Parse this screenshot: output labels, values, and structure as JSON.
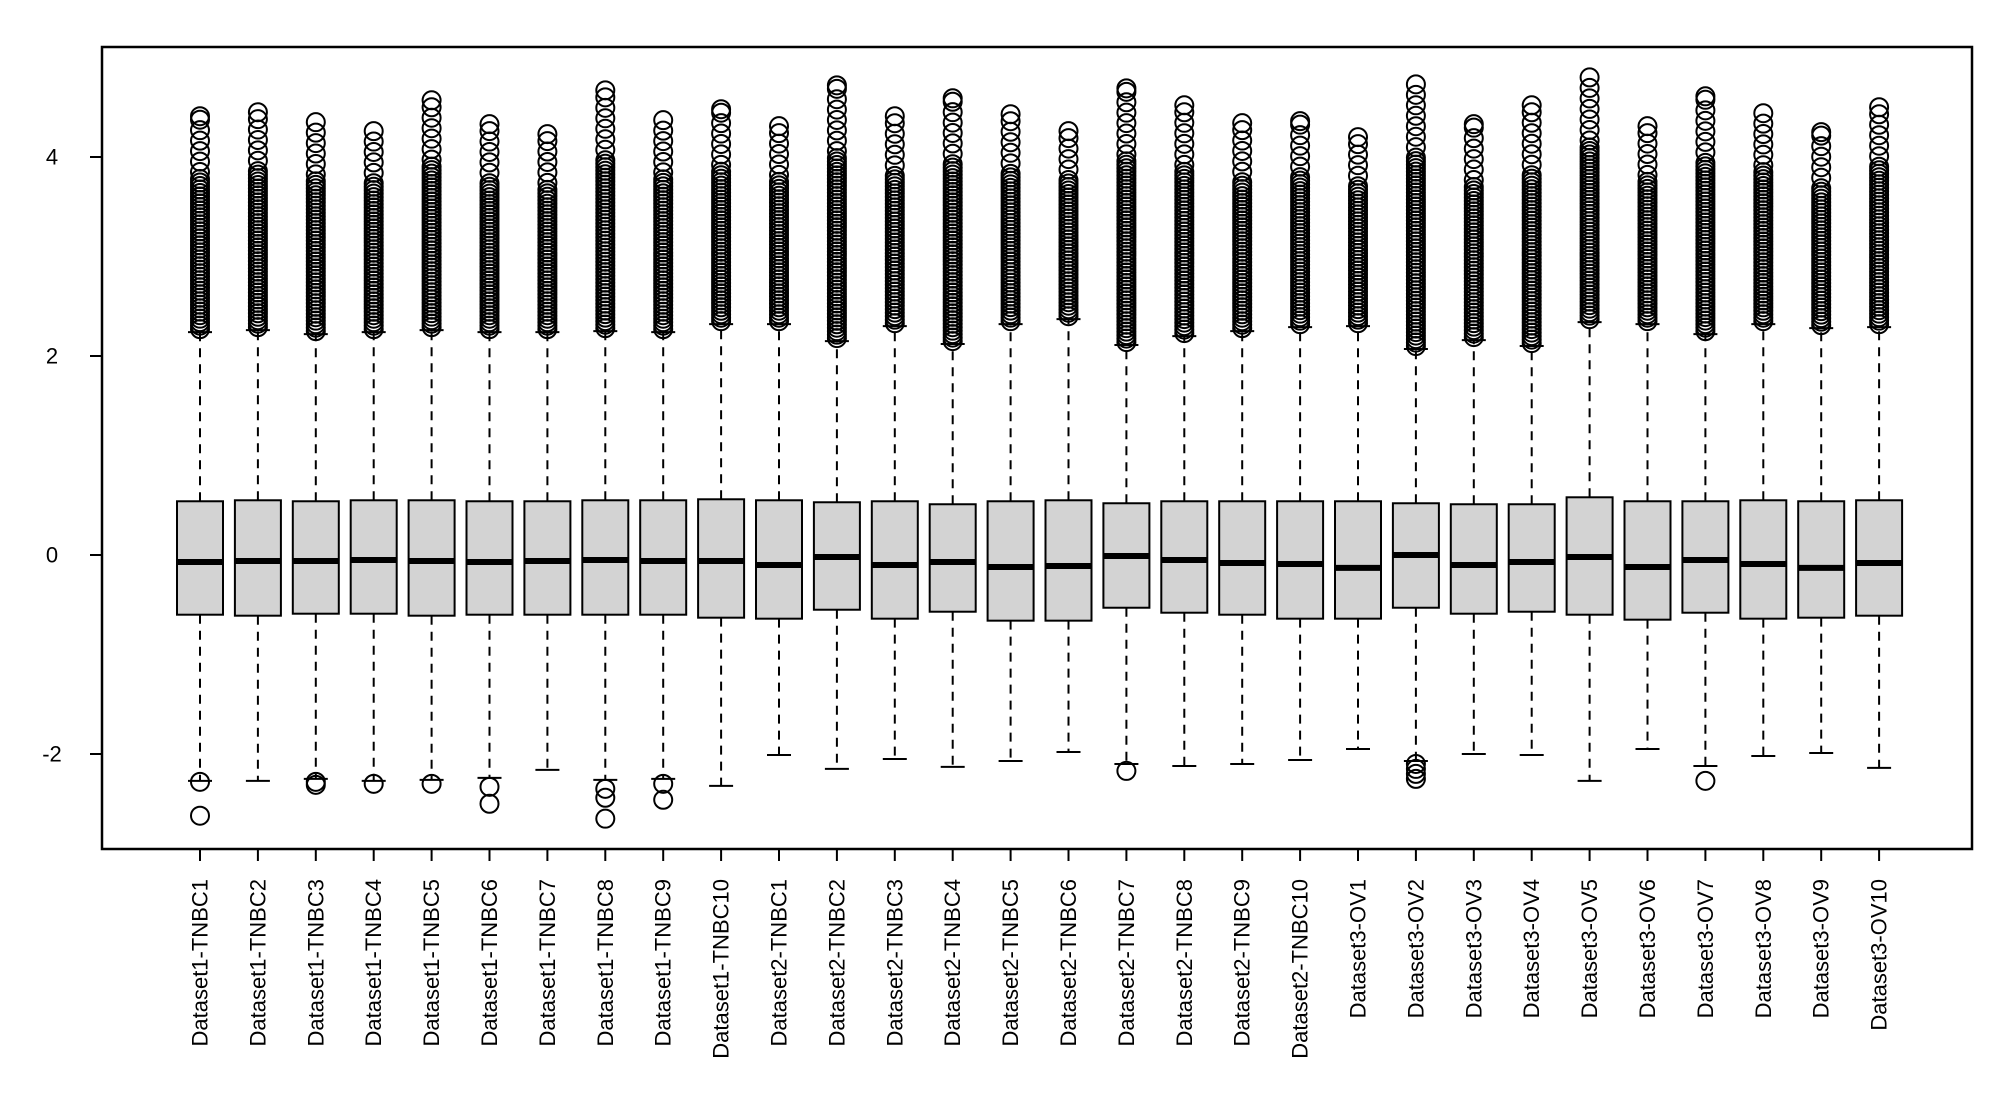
{
  "chart_data": {
    "type": "box",
    "title": "",
    "xlabel": "",
    "ylabel": "",
    "ylim": [
      -2.9,
      5.2
    ],
    "yticks": [
      -2,
      0,
      2,
      4
    ],
    "grid": false,
    "legend": "none",
    "colors": {
      "box_fill": "#d3d3d3",
      "stroke": "#000000"
    },
    "categories": [
      "Dataset1-TNBC1",
      "Dataset1-TNBC2",
      "Dataset1-TNBC3",
      "Dataset1-TNBC4",
      "Dataset1-TNBC5",
      "Dataset1-TNBC6",
      "Dataset1-TNBC7",
      "Dataset1-TNBC8",
      "Dataset1-TNBC9",
      "Dataset1-TNBC10",
      "Dataset2-TNBC1",
      "Dataset2-TNBC2",
      "Dataset2-TNBC3",
      "Dataset2-TNBC4",
      "Dataset2-TNBC5",
      "Dataset2-TNBC6",
      "Dataset2-TNBC7",
      "Dataset2-TNBC8",
      "Dataset2-TNBC9",
      "Dataset2-TNBC10",
      "Dataset3-OV1",
      "Dataset3-OV2",
      "Dataset3-OV3",
      "Dataset3-OV4",
      "Dataset3-OV5",
      "Dataset3-OV6",
      "Dataset3-OV7",
      "Dataset3-OV8",
      "Dataset3-OV9",
      "Dataset3-OV10"
    ],
    "boxes": [
      {
        "q1": -0.6,
        "median": -0.07,
        "q3": 0.54,
        "whisker_low": -2.27,
        "whisker_high": 2.24,
        "outliers_high_to": 4.41,
        "outliers_low": [
          -2.28,
          -2.62
        ]
      },
      {
        "q1": -0.61,
        "median": -0.06,
        "q3": 0.55,
        "whisker_low": -2.27,
        "whisker_high": 2.26,
        "outliers_high_to": 4.45,
        "outliers_low": []
      },
      {
        "q1": -0.59,
        "median": -0.06,
        "q3": 0.54,
        "whisker_low": -2.25,
        "whisker_high": 2.22,
        "outliers_high_to": 4.35,
        "outliers_low": [
          -2.28,
          -2.31
        ]
      },
      {
        "q1": -0.59,
        "median": -0.05,
        "q3": 0.55,
        "whisker_low": -2.27,
        "whisker_high": 2.24,
        "outliers_high_to": 4.26,
        "outliers_low": [
          -2.3
        ]
      },
      {
        "q1": -0.61,
        "median": -0.06,
        "q3": 0.55,
        "whisker_low": -2.26,
        "whisker_high": 2.26,
        "outliers_high_to": 4.57,
        "outliers_low": [
          -2.3
        ]
      },
      {
        "q1": -0.6,
        "median": -0.07,
        "q3": 0.54,
        "whisker_low": -2.24,
        "whisker_high": 2.24,
        "outliers_high_to": 4.33,
        "outliers_low": [
          -2.33,
          -2.5
        ]
      },
      {
        "q1": -0.6,
        "median": -0.06,
        "q3": 0.54,
        "whisker_low": -2.16,
        "whisker_high": 2.24,
        "outliers_high_to": 4.23,
        "outliers_low": []
      },
      {
        "q1": -0.6,
        "median": -0.05,
        "q3": 0.55,
        "whisker_low": -2.26,
        "whisker_high": 2.25,
        "outliers_high_to": 4.67,
        "outliers_low": [
          -2.35,
          -2.44,
          -2.65
        ]
      },
      {
        "q1": -0.6,
        "median": -0.06,
        "q3": 0.55,
        "whisker_low": -2.25,
        "whisker_high": 2.24,
        "outliers_high_to": 4.37,
        "outliers_low": [
          -2.3,
          -2.46
        ]
      },
      {
        "q1": -0.63,
        "median": -0.06,
        "q3": 0.56,
        "whisker_low": -2.32,
        "whisker_high": 2.32,
        "outliers_high_to": 4.48,
        "outliers_low": []
      },
      {
        "q1": -0.64,
        "median": -0.1,
        "q3": 0.55,
        "whisker_low": -2.01,
        "whisker_high": 2.32,
        "outliers_high_to": 4.31,
        "outliers_low": []
      },
      {
        "q1": -0.55,
        "median": -0.02,
        "q3": 0.53,
        "whisker_low": -2.15,
        "whisker_high": 2.15,
        "outliers_high_to": 4.72,
        "outliers_low": []
      },
      {
        "q1": -0.64,
        "median": -0.1,
        "q3": 0.54,
        "whisker_low": -2.05,
        "whisker_high": 2.3,
        "outliers_high_to": 4.41,
        "outliers_low": []
      },
      {
        "q1": -0.57,
        "median": -0.07,
        "q3": 0.51,
        "whisker_low": -2.13,
        "whisker_high": 2.12,
        "outliers_high_to": 4.59,
        "outliers_low": []
      },
      {
        "q1": -0.66,
        "median": -0.12,
        "q3": 0.54,
        "whisker_low": -2.07,
        "whisker_high": 2.32,
        "outliers_high_to": 4.43,
        "outliers_low": []
      },
      {
        "q1": -0.66,
        "median": -0.11,
        "q3": 0.55,
        "whisker_low": -1.98,
        "whisker_high": 2.37,
        "outliers_high_to": 4.26,
        "outliers_low": []
      },
      {
        "q1": -0.53,
        "median": -0.01,
        "q3": 0.52,
        "whisker_low": -2.1,
        "whisker_high": 2.11,
        "outliers_high_to": 4.69,
        "outliers_low": [
          -2.17
        ]
      },
      {
        "q1": -0.58,
        "median": -0.05,
        "q3": 0.54,
        "whisker_low": -2.12,
        "whisker_high": 2.2,
        "outliers_high_to": 4.52,
        "outliers_low": []
      },
      {
        "q1": -0.6,
        "median": -0.08,
        "q3": 0.54,
        "whisker_low": -2.1,
        "whisker_high": 2.25,
        "outliers_high_to": 4.34,
        "outliers_low": []
      },
      {
        "q1": -0.64,
        "median": -0.09,
        "q3": 0.54,
        "whisker_low": -2.06,
        "whisker_high": 2.29,
        "outliers_high_to": 4.36,
        "outliers_low": []
      },
      {
        "q1": -0.64,
        "median": -0.13,
        "q3": 0.54,
        "whisker_low": -1.95,
        "whisker_high": 2.3,
        "outliers_high_to": 4.2,
        "outliers_low": []
      },
      {
        "q1": -0.53,
        "median": 0.0,
        "q3": 0.52,
        "whisker_low": -2.07,
        "whisker_high": 2.07,
        "outliers_high_to": 4.73,
        "outliers_low": [
          -2.1,
          -2.15,
          -2.2,
          -2.25
        ]
      },
      {
        "q1": -0.59,
        "median": -0.1,
        "q3": 0.51,
        "whisker_low": -2.0,
        "whisker_high": 2.16,
        "outliers_high_to": 4.33,
        "outliers_low": []
      },
      {
        "q1": -0.57,
        "median": -0.07,
        "q3": 0.51,
        "whisker_low": -2.01,
        "whisker_high": 2.1,
        "outliers_high_to": 4.52,
        "outliers_low": []
      },
      {
        "q1": -0.6,
        "median": -0.02,
        "q3": 0.58,
        "whisker_low": -2.27,
        "whisker_high": 2.34,
        "outliers_high_to": 4.8,
        "outliers_low": []
      },
      {
        "q1": -0.65,
        "median": -0.12,
        "q3": 0.54,
        "whisker_low": -1.95,
        "whisker_high": 2.32,
        "outliers_high_to": 4.31,
        "outliers_low": []
      },
      {
        "q1": -0.58,
        "median": -0.05,
        "q3": 0.54,
        "whisker_low": -2.12,
        "whisker_high": 2.22,
        "outliers_high_to": 4.61,
        "outliers_low": [
          -2.27
        ]
      },
      {
        "q1": -0.64,
        "median": -0.09,
        "q3": 0.55,
        "whisker_low": -2.02,
        "whisker_high": 2.32,
        "outliers_high_to": 4.44,
        "outliers_low": []
      },
      {
        "q1": -0.63,
        "median": -0.13,
        "q3": 0.54,
        "whisker_low": -1.99,
        "whisker_high": 2.28,
        "outliers_high_to": 4.25,
        "outliers_low": []
      },
      {
        "q1": -0.61,
        "median": -0.08,
        "q3": 0.55,
        "whisker_low": -2.14,
        "whisker_high": 2.29,
        "outliers_high_to": 4.5,
        "outliers_low": []
      }
    ]
  }
}
